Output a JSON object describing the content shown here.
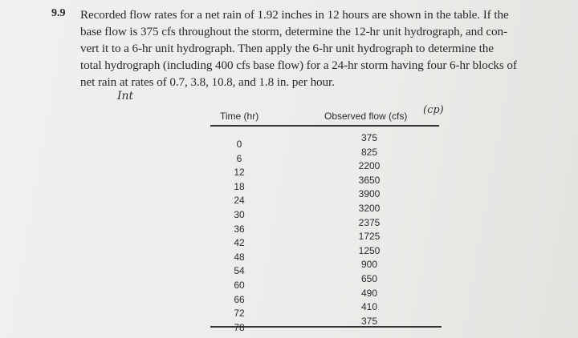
{
  "problem": {
    "number": "9.9",
    "lines": [
      "Recorded flow rates for a net rain of 1.92 inches in 12 hours are shown in the table. If the",
      "base flow is 375 cfs throughout the storm, determine the 12-hr unit hydrograph, and con-",
      "vert it to a 6-hr unit hydrograph. Then apply the 6-hr unit hydrograph to determine the",
      "total hydrograph (including 400 cfs base flow) for a 24-hr storm having four 6-hr blocks of",
      "net rain at rates of 0.7, 3.8, 10.8, and 1.8 in. per hour."
    ]
  },
  "handwriting": {
    "left": "Int",
    "right": "(cp)"
  },
  "table": {
    "headers": [
      "Time (hr)",
      "Observed flow (cfs)"
    ],
    "rows": [
      [
        0,
        375
      ],
      [
        6,
        825
      ],
      [
        12,
        2200
      ],
      [
        18,
        3650
      ],
      [
        24,
        3900
      ],
      [
        30,
        3200
      ],
      [
        36,
        2375
      ],
      [
        42,
        1725
      ],
      [
        48,
        1250
      ],
      [
        54,
        900
      ],
      [
        60,
        650
      ],
      [
        66,
        490
      ],
      [
        72,
        410
      ],
      [
        78,
        375
      ]
    ]
  }
}
